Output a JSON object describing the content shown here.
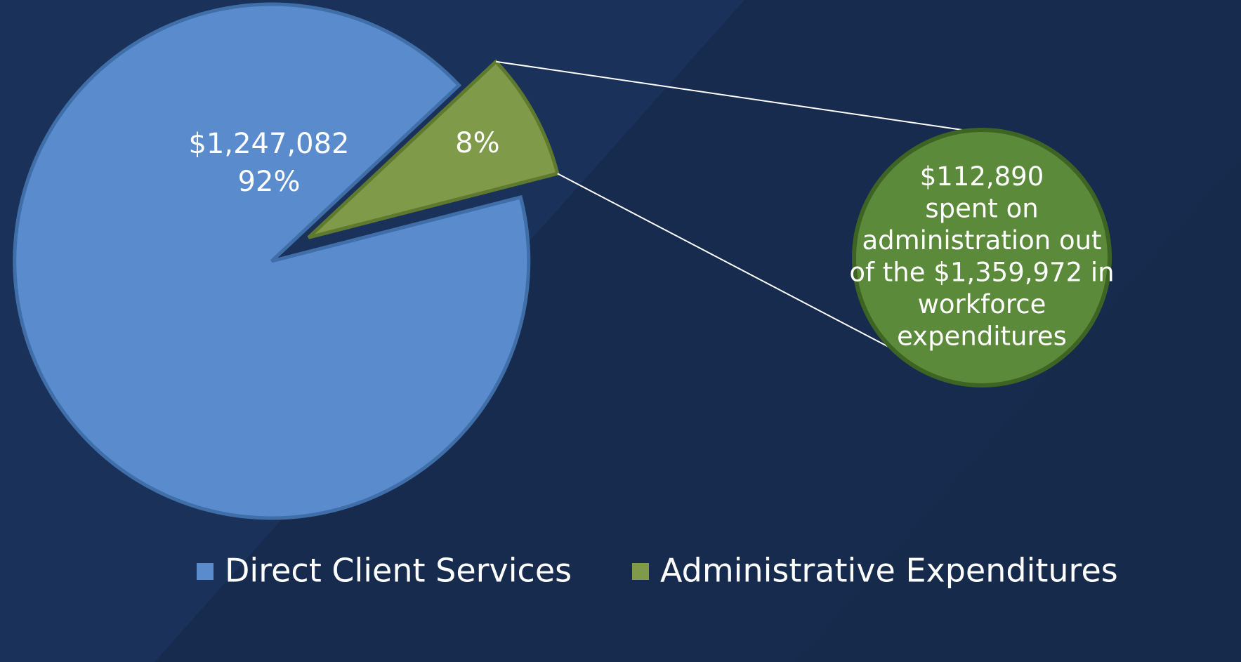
{
  "chart_data": {
    "type": "pie",
    "categories": [
      "Direct Client Services",
      "Administrative Expenditures"
    ],
    "values": [
      92,
      8
    ],
    "value_labels": [
      "92%",
      "8%"
    ],
    "amount_label": "$1,247,082",
    "colors": [
      "#5a8ccd",
      "#7f9a48"
    ],
    "annotation": [
      "$112,890",
      "spent on",
      "administration out",
      "of the $1,359,972 in",
      "workforce",
      "expenditures"
    ],
    "legend": "bottom"
  }
}
